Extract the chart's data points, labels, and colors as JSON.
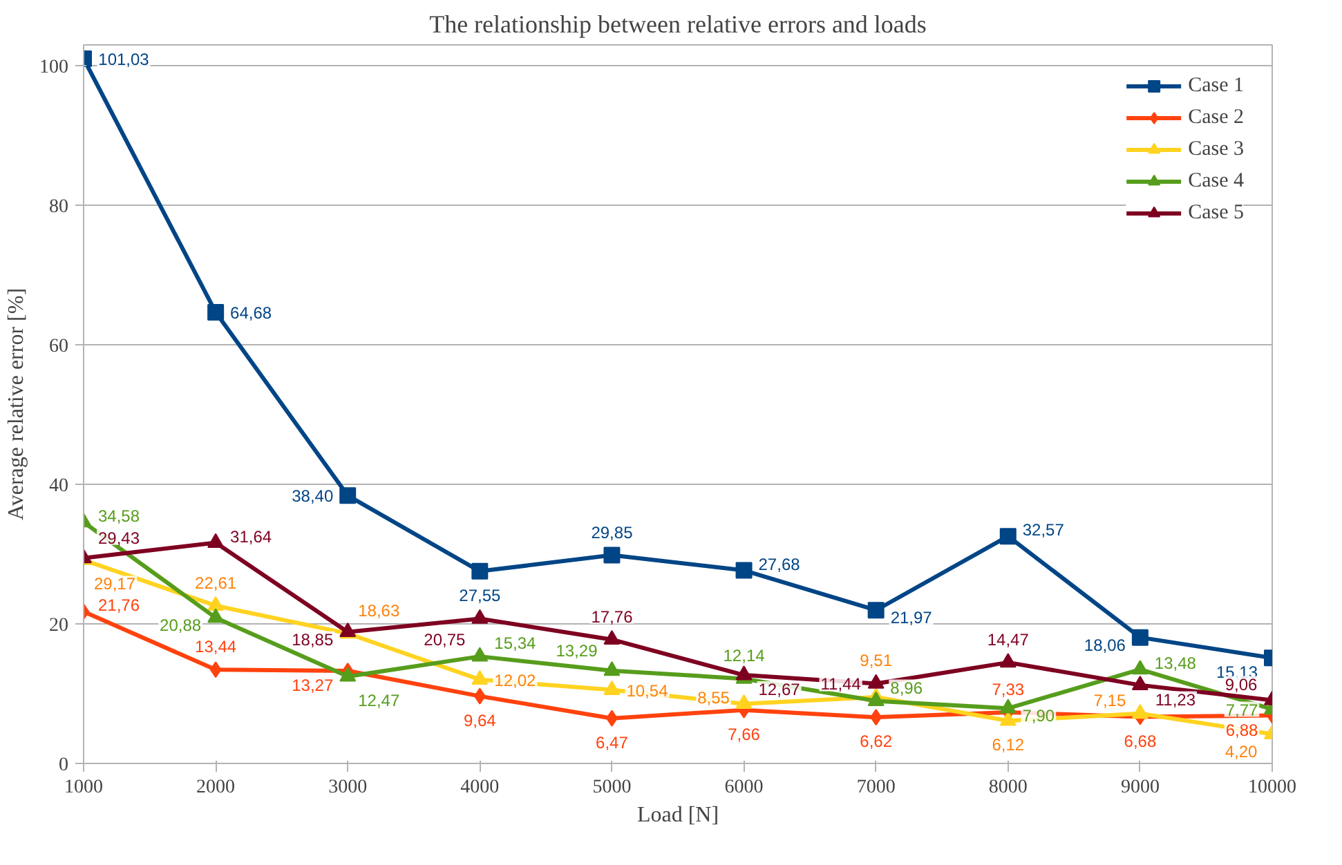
{
  "chart_data": {
    "type": "line",
    "title": "The relationship between relative errors and loads",
    "xlabel": "Load [N]",
    "ylabel": "Average relative error [%]",
    "x": [
      1000,
      2000,
      3000,
      4000,
      5000,
      6000,
      7000,
      8000,
      9000,
      10000
    ],
    "xlim": [
      1000,
      10000
    ],
    "xticks": [
      1000,
      2000,
      3000,
      4000,
      5000,
      6000,
      7000,
      8000,
      9000,
      10000
    ],
    "ylim": [
      0,
      103
    ],
    "yticks": [
      0,
      20,
      40,
      60,
      80,
      100
    ],
    "grid": "y",
    "legend": "top right",
    "series": [
      {
        "name": "Case 1",
        "color": "#004586",
        "marker": "square",
        "values": [
          101.03,
          64.68,
          38.4,
          27.55,
          29.85,
          27.68,
          21.97,
          32.57,
          18.06,
          15.13
        ],
        "value_labels": [
          "101,03",
          "64,68",
          "38,40",
          "27,55",
          "29,85",
          "27,68",
          "21,97",
          "32,57",
          "18,06",
          "15,13"
        ]
      },
      {
        "name": "Case 2",
        "color": "#ff420e",
        "marker": "diamond",
        "values": [
          21.76,
          13.44,
          13.27,
          9.64,
          6.47,
          7.66,
          6.62,
          7.33,
          6.68,
          6.88
        ],
        "value_labels": [
          "21,76",
          "13,44",
          "13,27",
          "9,64",
          "6,47",
          "7,66",
          "6,62",
          "7,33",
          "6,68",
          "6,88"
        ]
      },
      {
        "name": "Case 3",
        "color": "#ffd320",
        "marker": "triangle",
        "values": [
          29.17,
          22.61,
          18.63,
          12.02,
          10.54,
          8.55,
          9.51,
          6.12,
          7.15,
          4.2
        ],
        "value_labels": [
          "29,17",
          "22,61",
          "18,63",
          "12,02",
          "10,54",
          "8,55",
          "9,51",
          "6,12",
          "7,15",
          "4,20"
        ]
      },
      {
        "name": "Case 4",
        "color": "#579d1c",
        "marker": "triangle",
        "values": [
          34.58,
          20.88,
          12.47,
          15.34,
          13.29,
          12.14,
          8.96,
          7.9,
          13.48,
          7.77
        ],
        "value_labels": [
          "34,58",
          "20,88",
          "12,47",
          "15,34",
          "13,29",
          "12,14",
          "8,96",
          "7,90",
          "13,48",
          "7,77"
        ]
      },
      {
        "name": "Case 5",
        "color": "#7e0021",
        "marker": "triangle",
        "values": [
          29.43,
          31.64,
          18.85,
          20.75,
          17.76,
          12.67,
          11.44,
          14.47,
          11.23,
          9.06
        ],
        "value_labels": [
          "29,43",
          "31,64",
          "18,85",
          "20,75",
          "17,76",
          "12,67",
          "11,44",
          "14,47",
          "11,23",
          "9,06"
        ]
      }
    ]
  }
}
